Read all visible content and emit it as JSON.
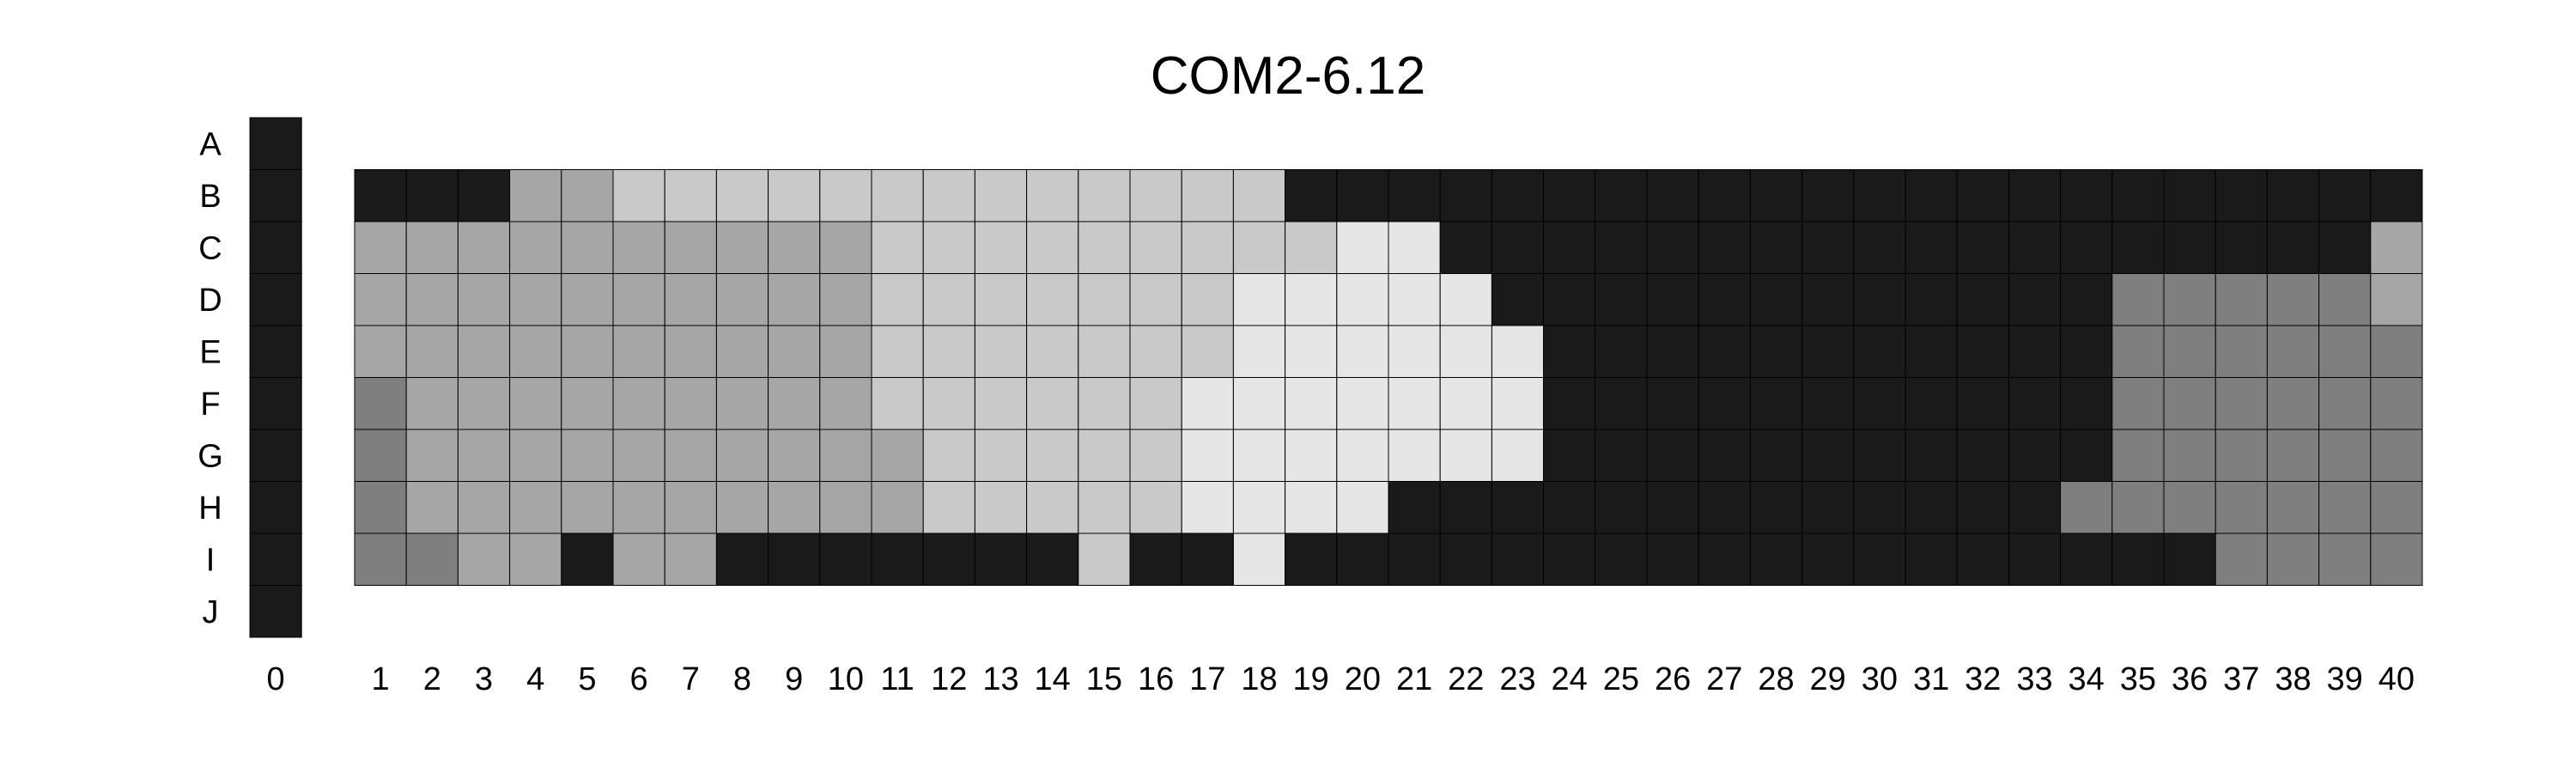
{
  "chart_data": {
    "type": "heatmap",
    "title": "COM2-6.12",
    "xlabel": "",
    "ylabel": "",
    "rows": [
      "A",
      "B",
      "C",
      "D",
      "E",
      "F",
      "G",
      "H",
      "I",
      "J"
    ],
    "control_column": {
      "label": "0",
      "levels": [
        4,
        4,
        4,
        4,
        4,
        4,
        4,
        4,
        4,
        4
      ]
    },
    "columns": [
      "1",
      "2",
      "3",
      "4",
      "5",
      "6",
      "7",
      "8",
      "9",
      "10",
      "11",
      "12",
      "13",
      "14",
      "15",
      "16",
      "17",
      "18",
      "19",
      "20",
      "21",
      "22",
      "23",
      "24",
      "25",
      "26",
      "27",
      "28",
      "29",
      "30",
      "31",
      "32",
      "33",
      "34",
      "35",
      "36",
      "37",
      "38",
      "39",
      "40"
    ],
    "plate_rows": [
      "B",
      "C",
      "D",
      "E",
      "F",
      "G",
      "H",
      "I"
    ],
    "level_colors": [
      "#e6e6e6",
      "#c9c9c9",
      "#a6a6a6",
      "#7f7f7f",
      "#1a1a1a"
    ],
    "levels": [
      [
        4,
        4,
        4,
        2,
        2,
        1,
        1,
        1,
        1,
        1,
        1,
        1,
        1,
        1,
        1,
        1,
        1,
        1,
        4,
        4,
        4,
        4,
        4,
        4,
        4,
        4,
        4,
        4,
        4,
        4,
        4,
        4,
        4,
        4,
        4,
        4,
        4,
        4,
        4,
        4
      ],
      [
        2,
        2,
        2,
        2,
        2,
        2,
        2,
        2,
        2,
        2,
        1,
        1,
        1,
        1,
        1,
        1,
        1,
        1,
        1,
        0,
        0,
        4,
        4,
        4,
        4,
        4,
        4,
        4,
        4,
        4,
        4,
        4,
        4,
        4,
        4,
        4,
        4,
        4,
        4,
        2
      ],
      [
        2,
        2,
        2,
        2,
        2,
        2,
        2,
        2,
        2,
        2,
        1,
        1,
        1,
        1,
        1,
        1,
        1,
        0,
        0,
        0,
        0,
        0,
        4,
        4,
        4,
        4,
        4,
        4,
        4,
        4,
        4,
        4,
        4,
        4,
        3,
        3,
        3,
        3,
        3,
        2
      ],
      [
        2,
        2,
        2,
        2,
        2,
        2,
        2,
        2,
        2,
        2,
        1,
        1,
        1,
        1,
        1,
        1,
        1,
        0,
        0,
        0,
        0,
        0,
        0,
        4,
        4,
        4,
        4,
        4,
        4,
        4,
        4,
        4,
        4,
        4,
        3,
        3,
        3,
        3,
        3,
        3
      ],
      [
        3,
        2,
        2,
        2,
        2,
        2,
        2,
        2,
        2,
        2,
        1,
        1,
        1,
        1,
        1,
        1,
        0,
        0,
        0,
        0,
        0,
        0,
        0,
        4,
        4,
        4,
        4,
        4,
        4,
        4,
        4,
        4,
        4,
        4,
        3,
        3,
        3,
        3,
        3,
        3
      ],
      [
        3,
        2,
        2,
        2,
        2,
        2,
        2,
        2,
        2,
        2,
        2,
        1,
        1,
        1,
        1,
        1,
        0,
        0,
        0,
        0,
        0,
        0,
        0,
        4,
        4,
        4,
        4,
        4,
        4,
        4,
        4,
        4,
        4,
        4,
        3,
        3,
        3,
        3,
        3,
        3
      ],
      [
        3,
        2,
        2,
        2,
        2,
        2,
        2,
        2,
        2,
        2,
        2,
        1,
        1,
        1,
        1,
        1,
        0,
        0,
        0,
        0,
        4,
        4,
        4,
        4,
        4,
        4,
        4,
        4,
        4,
        4,
        4,
        4,
        4,
        3,
        3,
        3,
        3,
        3,
        3,
        3
      ],
      [
        3,
        3,
        2,
        2,
        4,
        2,
        2,
        4,
        4,
        4,
        4,
        4,
        4,
        4,
        1,
        4,
        4,
        0,
        4,
        4,
        4,
        4,
        4,
        4,
        4,
        4,
        4,
        4,
        4,
        4,
        4,
        4,
        4,
        4,
        4,
        4,
        3,
        3,
        3,
        3
      ]
    ]
  }
}
